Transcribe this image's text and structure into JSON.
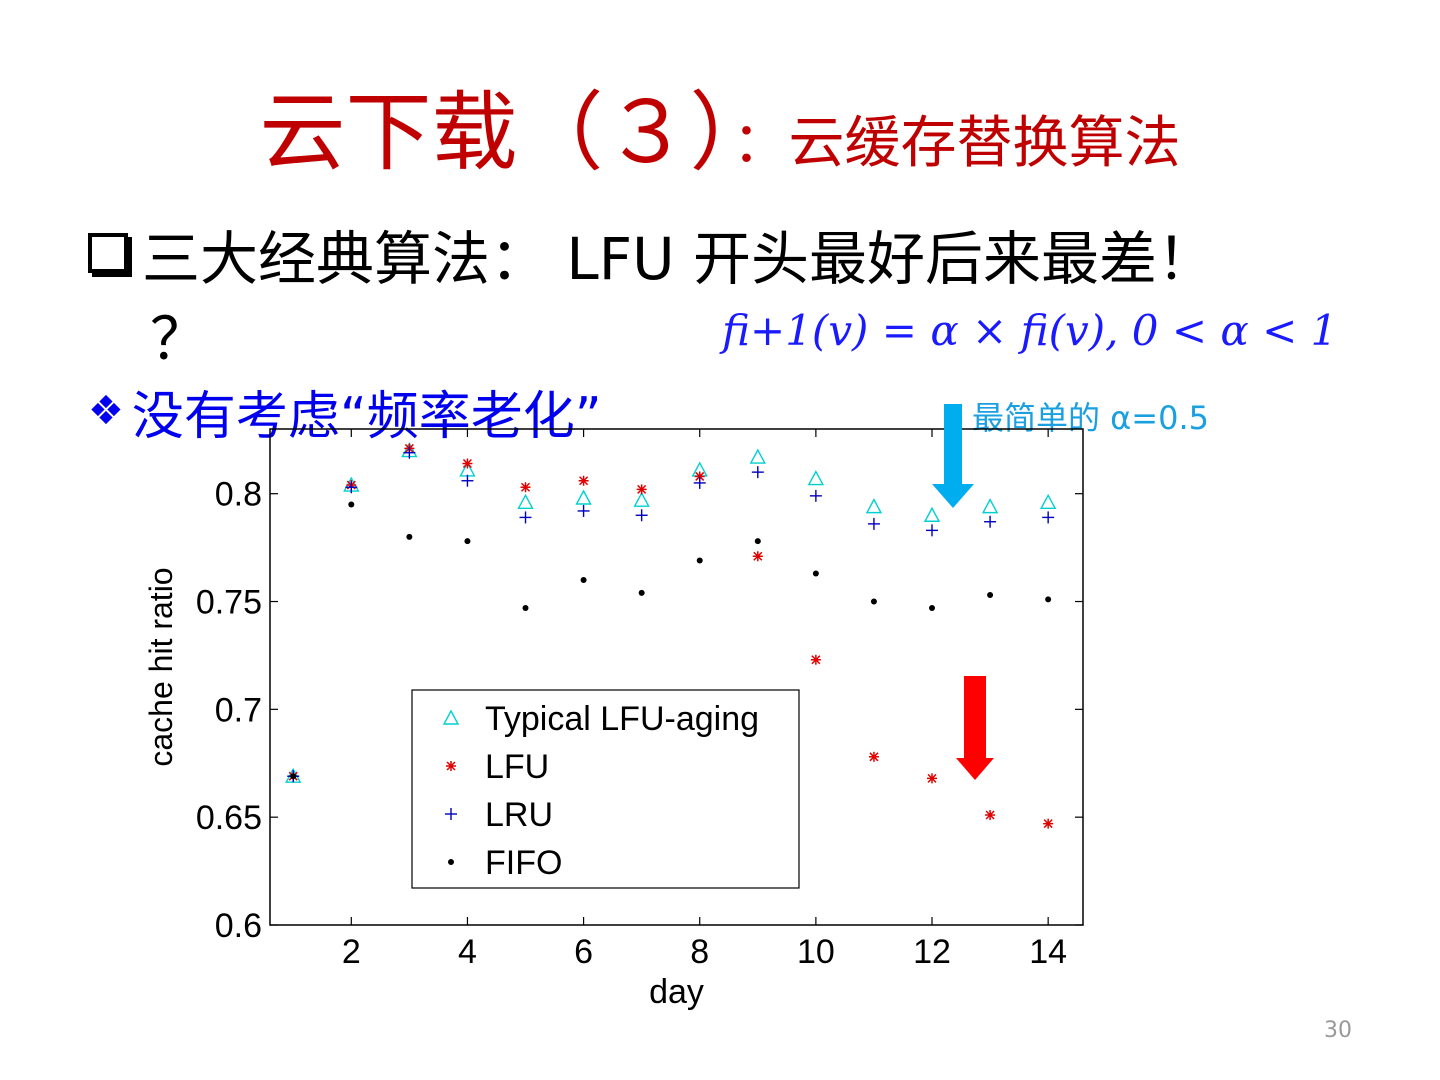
{
  "slide": {
    "title_main": "云下载（３）",
    "title_sub": "：云缓存替换算法",
    "bullet1": "三大经典算法： LFU 开头最好后来最差！",
    "bullet1_cont": "？",
    "bullet2": "没有考虑“频率老化”",
    "formula": "fi+1(v) = α × fi(v),   0 < α < 1",
    "note": "最简单的 α=0.5",
    "page_number": "30"
  },
  "colors": {
    "title": "#c00000",
    "bullet2": "#0000ee",
    "formula": "#1a1aff",
    "note": "#1aa0e0",
    "arrow_blue": "#00aeef",
    "arrow_red": "#ff0000"
  },
  "chart_data": {
    "type": "scatter",
    "xlabel": "day",
    "ylabel": "cache hit ratio",
    "xlim": [
      0.6,
      14.6
    ],
    "ylim": [
      0.6,
      0.83
    ],
    "xticks": [
      2,
      4,
      6,
      8,
      10,
      12,
      14
    ],
    "yticks": [
      0.6,
      0.65,
      0.7,
      0.75,
      0.8
    ],
    "ytick_labels": [
      "0.6",
      "0.65",
      "0.7",
      "0.75",
      "0.8"
    ],
    "legend_position": "lower-left",
    "grid": false,
    "x": [
      1,
      2,
      3,
      4,
      5,
      6,
      7,
      8,
      9,
      10,
      11,
      12,
      13,
      14
    ],
    "series": [
      {
        "name": "Typical LFU-aging",
        "marker": "triangle",
        "color": "#00d0d0",
        "values": [
          0.669,
          0.804,
          0.82,
          0.811,
          0.796,
          0.798,
          0.797,
          0.811,
          0.817,
          0.807,
          0.794,
          0.79,
          0.794,
          0.796
        ]
      },
      {
        "name": "LFU",
        "marker": "star",
        "color": "#e00000",
        "values": [
          0.669,
          0.804,
          0.821,
          0.814,
          0.803,
          0.806,
          0.802,
          0.808,
          0.771,
          0.723,
          0.678,
          0.668,
          0.651,
          0.647
        ]
      },
      {
        "name": "LRU",
        "marker": "plus",
        "color": "#0000c0",
        "values": [
          0.669,
          0.803,
          0.819,
          0.806,
          0.789,
          0.792,
          0.79,
          0.805,
          0.81,
          0.799,
          0.786,
          0.783,
          0.787,
          0.789
        ]
      },
      {
        "name": "FIFO",
        "marker": "dot",
        "color": "#000000",
        "values": [
          0.669,
          0.795,
          0.78,
          0.778,
          0.747,
          0.76,
          0.754,
          0.769,
          0.778,
          0.763,
          0.75,
          0.747,
          0.753,
          0.751
        ]
      }
    ]
  }
}
